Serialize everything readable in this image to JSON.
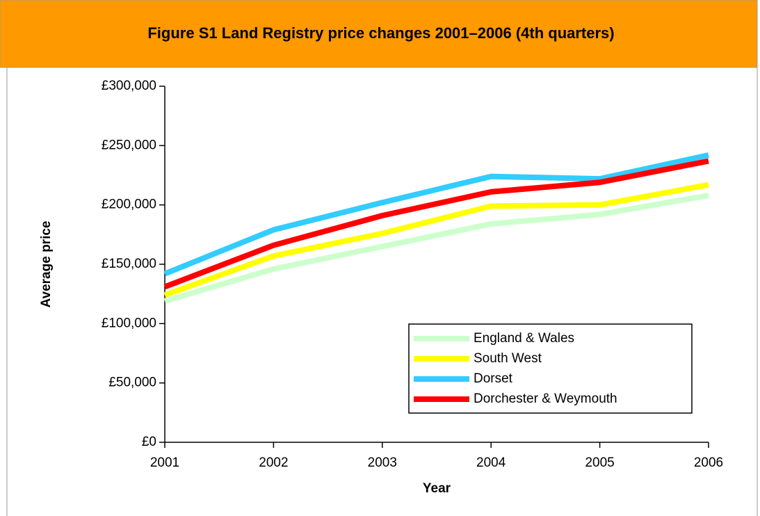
{
  "chart_data": {
    "type": "line",
    "title": "Figure S1 Land Registry price changes 2001–2006 (4th quarters)",
    "xlabel": "Year",
    "ylabel": "Average price",
    "x": [
      2001,
      2002,
      2003,
      2004,
      2005,
      2006
    ],
    "xlim": [
      2001,
      2006
    ],
    "xticks": [
      2001,
      2002,
      2003,
      2004,
      2005,
      2006
    ],
    "ylim": [
      0,
      300000
    ],
    "yticks": [
      {
        "value": 0,
        "label": "£0"
      },
      {
        "value": 50000,
        "label": "£50,000"
      },
      {
        "value": 100000,
        "label": "£100,000"
      },
      {
        "value": 150000,
        "label": "£150,000"
      },
      {
        "value": 200000,
        "label": "£200,000"
      },
      {
        "value": 250000,
        "label": "£250,000"
      },
      {
        "value": 300000,
        "label": "£300,000"
      }
    ],
    "grid": false,
    "legend": "lower right",
    "series": [
      {
        "name": "England & Wales",
        "color": "#ccffcc",
        "values": [
          119000,
          146000,
          165000,
          184000,
          192000,
          208000
        ]
      },
      {
        "name": "South West",
        "color": "#ffff00",
        "values": [
          124000,
          157000,
          176000,
          199000,
          200000,
          217000
        ]
      },
      {
        "name": "Dorset",
        "color": "#33ccff",
        "values": [
          142000,
          179000,
          202000,
          224000,
          222000,
          242000
        ]
      },
      {
        "name": "Dorchester & Weymouth",
        "color": "#ff0000",
        "values": [
          131000,
          166000,
          191000,
          211000,
          219000,
          237000
        ]
      }
    ]
  }
}
